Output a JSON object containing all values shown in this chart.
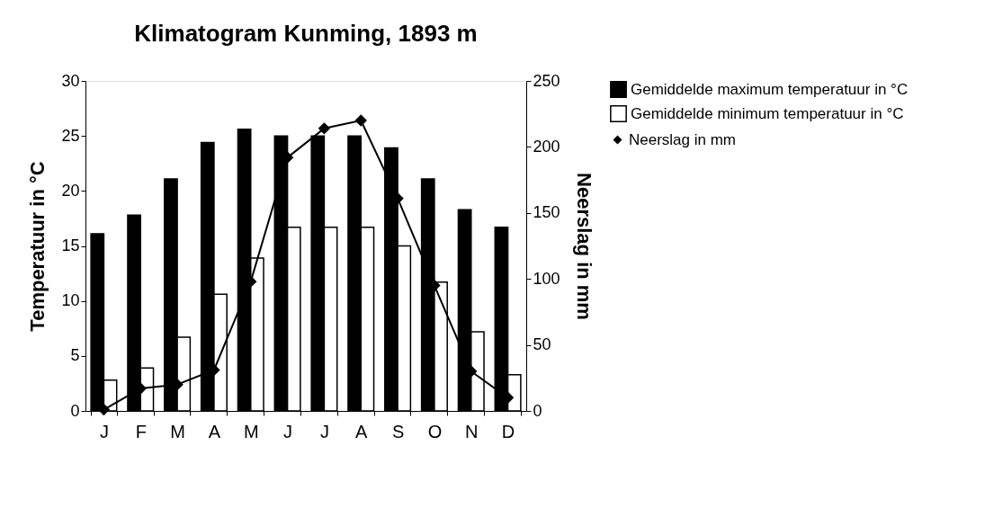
{
  "chart_data": {
    "type": "bar",
    "title": "Klimatogram Kunming, 1893 m",
    "ylabel": "Temperatuur in °C",
    "y2label": "Neerslag in mm",
    "categories": [
      "J",
      "F",
      "M",
      "A",
      "M",
      "J",
      "J",
      "A",
      "S",
      "O",
      "N",
      "D"
    ],
    "series": [
      {
        "name": "Gemiddelde maximum temperatuur in °C",
        "color": "#000000",
        "values": [
          16.1,
          17.8,
          21.1,
          24.4,
          25.6,
          25.0,
          25.0,
          25.0,
          23.9,
          21.1,
          18.3,
          16.7
        ]
      },
      {
        "name": "Gemiddelde minimum temperatuur in °C",
        "color": "#ffffff",
        "values": [
          2.8,
          3.9,
          6.7,
          10.6,
          13.9,
          16.7,
          16.7,
          16.7,
          15.0,
          11.7,
          7.2,
          3.3
        ]
      },
      {
        "name": "Neerslag in mm",
        "type": "line",
        "axis": "y2",
        "color": "#000000",
        "marker": "diamond",
        "values": [
          1,
          17,
          20,
          31,
          98,
          192,
          214,
          220,
          161,
          95,
          30,
          10
        ]
      }
    ],
    "ylim": [
      0,
      30
    ],
    "yticks": [
      0,
      5,
      10,
      15,
      20,
      25,
      30
    ],
    "y2lim": [
      0,
      250
    ],
    "y2ticks": [
      0,
      50,
      100,
      150,
      200,
      250
    ],
    "grid": false,
    "legend": "right"
  }
}
